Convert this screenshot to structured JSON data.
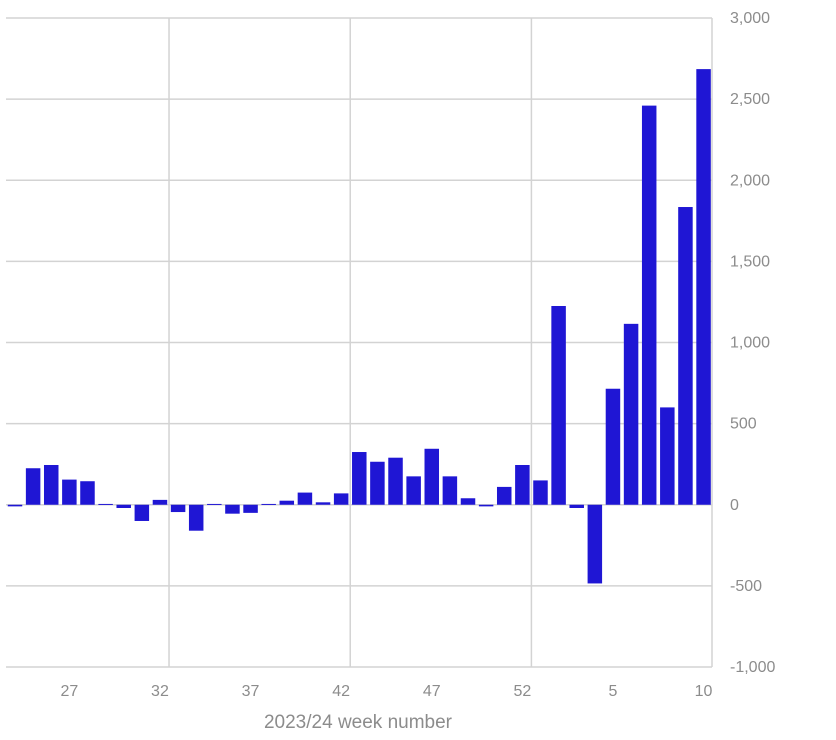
{
  "chart_data": {
    "type": "bar",
    "title": "",
    "xlabel": "2023/24 week number",
    "ylabel": "",
    "ylim": [
      -1000,
      3000
    ],
    "y_ticks": [
      3000,
      2500,
      2000,
      1500,
      1000,
      500,
      0,
      -500,
      -1000
    ],
    "y_tick_labels": [
      "3,000",
      "2,500",
      "2,000",
      "1,500",
      "1,000",
      "500",
      "0",
      "-500",
      "-1,000"
    ],
    "y_axis_side": "right",
    "x_tick_labels": [
      {
        "label": "27",
        "week": "27"
      },
      {
        "label": "32",
        "week": "32"
      },
      {
        "label": "37",
        "week": "37"
      },
      {
        "label": "42",
        "week": "42"
      },
      {
        "label": "47",
        "week": "47"
      },
      {
        "label": "52",
        "week": "52"
      },
      {
        "label": "5",
        "week": "5"
      },
      {
        "label": "10",
        "week": "10"
      }
    ],
    "grid": true,
    "bar_color": "#1f16d4",
    "categories": [
      "24",
      "25",
      "26",
      "27",
      "28",
      "29",
      "30",
      "31",
      "32",
      "33",
      "34",
      "35",
      "36",
      "37",
      "38",
      "39",
      "40",
      "41",
      "42",
      "43",
      "44",
      "45",
      "46",
      "47",
      "48",
      "49",
      "50",
      "51",
      "52",
      "1",
      "2",
      "3",
      "4",
      "5",
      "6",
      "7",
      "8",
      "9",
      "10"
    ],
    "values": [
      -10,
      225,
      245,
      155,
      145,
      5,
      -20,
      -100,
      30,
      -45,
      -160,
      5,
      -55,
      -50,
      5,
      25,
      75,
      15,
      70,
      325,
      265,
      290,
      175,
      345,
      175,
      40,
      -10,
      110,
      245,
      150,
      1225,
      -20,
      -485,
      715,
      1115,
      2460,
      600,
      1835,
      2685
    ]
  }
}
